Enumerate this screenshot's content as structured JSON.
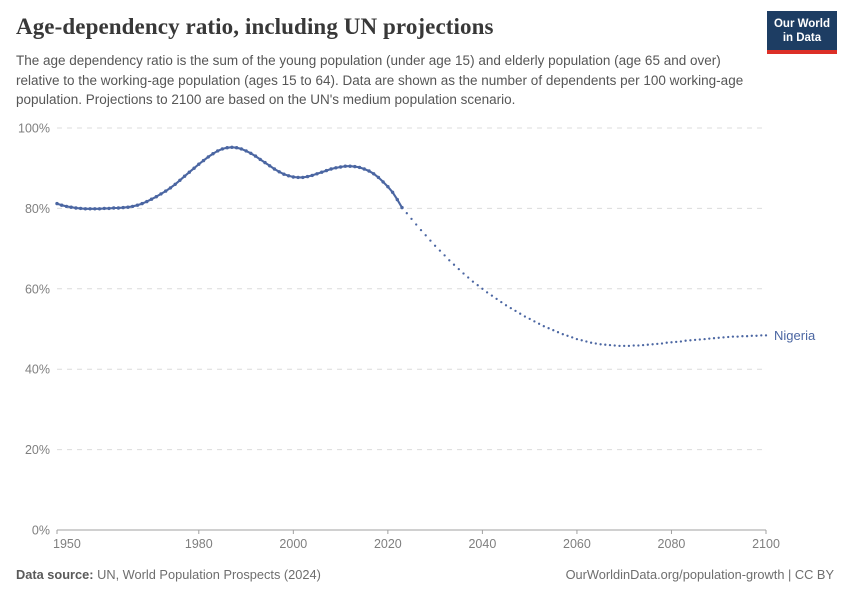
{
  "header": {
    "title": "Age-dependency ratio, including UN projections",
    "subtitle": "The age dependency ratio is the sum of the young population (under age 15) and elderly population (age 65 and over) relative to the working-age population (ages 15 to 64). Data are shown as the number of dependents per 100 working-age population. Projections to 2100 are based on the UN's medium population scenario.",
    "logo": {
      "line1": "Our World",
      "line2": "in Data",
      "bg_color": "#1d3d63",
      "accent_color": "#dc2f27"
    }
  },
  "chart_data": {
    "type": "line",
    "title": "Age-dependency ratio, including UN projections",
    "xlabel": "",
    "ylabel": "",
    "xlim": [
      1950,
      2100
    ],
    "ylim": [
      0,
      100
    ],
    "grid": "dashed horizontal gridlines",
    "legend_position": "end-of-line label",
    "x_ticks": [
      1950,
      1980,
      2000,
      2020,
      2040,
      2060,
      2080,
      2100
    ],
    "y_ticks": [
      {
        "value": 0,
        "label": "0%"
      },
      {
        "value": 20,
        "label": "20%"
      },
      {
        "value": 40,
        "label": "40%"
      },
      {
        "value": 60,
        "label": "60%"
      },
      {
        "value": 80,
        "label": "80%"
      },
      {
        "value": 100,
        "label": "100%"
      }
    ],
    "series": [
      {
        "name": "Nigeria",
        "color": "#4b66a2",
        "unit": "%",
        "historical": {
          "style": "solid line with round markers",
          "start_year": 1950,
          "end_year": 2023,
          "values": [
            81.2,
            80.8,
            80.5,
            80.3,
            80.1,
            80.0,
            79.9,
            79.9,
            79.9,
            79.9,
            80.0,
            80.0,
            80.1,
            80.1,
            80.2,
            80.3,
            80.5,
            80.8,
            81.2,
            81.7,
            82.3,
            82.9,
            83.6,
            84.3,
            85.1,
            86.0,
            87.0,
            88.0,
            89.0,
            90.0,
            91.0,
            91.9,
            92.8,
            93.6,
            94.3,
            94.8,
            95.1,
            95.2,
            95.1,
            94.8,
            94.3,
            93.7,
            93.0,
            92.2,
            91.4,
            90.6,
            89.8,
            89.1,
            88.5,
            88.1,
            87.8,
            87.7,
            87.7,
            87.9,
            88.2,
            88.6,
            89.0,
            89.4,
            89.8,
            90.1,
            90.3,
            90.5,
            90.5,
            90.4,
            90.2,
            89.8,
            89.3,
            88.6,
            87.7,
            86.6,
            85.4,
            84.0,
            82.2,
            80.2
          ]
        },
        "projection": {
          "style": "dotted",
          "start_year": 2023,
          "end_year": 2100,
          "values": [
            80.2,
            78.8,
            77.4,
            76.0,
            74.6,
            73.3,
            72.0,
            70.7,
            69.5,
            68.3,
            67.1,
            66.0,
            64.9,
            63.8,
            62.8,
            61.8,
            60.9,
            60.0,
            59.1,
            58.3,
            57.5,
            56.7,
            55.9,
            55.2,
            54.5,
            53.8,
            53.1,
            52.5,
            51.9,
            51.3,
            50.7,
            50.2,
            49.7,
            49.2,
            48.7,
            48.3,
            47.9,
            47.5,
            47.2,
            46.9,
            46.6,
            46.4,
            46.2,
            46.1,
            46.0,
            45.9,
            45.8,
            45.8,
            45.8,
            45.9,
            45.9,
            46.0,
            46.1,
            46.2,
            46.3,
            46.4,
            46.6,
            46.7,
            46.8,
            46.9,
            47.1,
            47.2,
            47.3,
            47.4,
            47.5,
            47.6,
            47.7,
            47.8,
            47.9,
            48.0,
            48.1,
            48.1,
            48.2,
            48.2,
            48.3,
            48.3,
            48.4,
            48.4
          ]
        }
      }
    ]
  },
  "footer": {
    "source_label": "Data source:",
    "source_text": " UN, World Population Prospects (2024)",
    "credit": "OurWorldinData.org/population-growth | CC BY"
  }
}
